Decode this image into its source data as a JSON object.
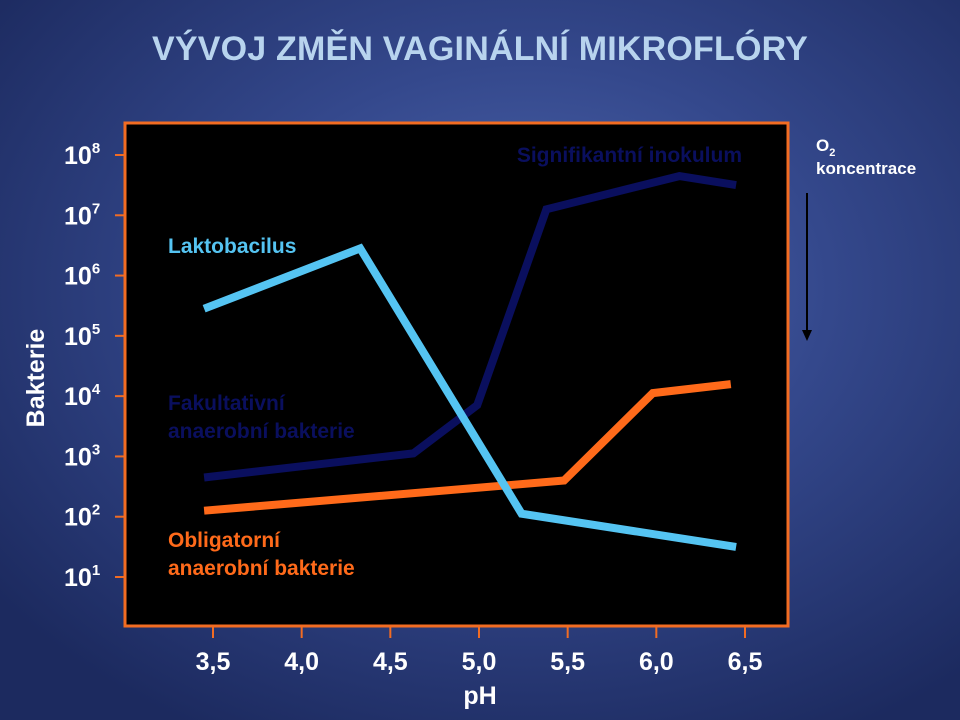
{
  "title": "VÝVOJ ZMĚN VAGINÁLNÍ MIKROFLÓRY",
  "colors": {
    "background": "#34488c",
    "plot_background": "#000000",
    "frame": "#f26c22",
    "lactobacillus": "#55c4f2",
    "facultative": "#0a0f5e",
    "obligate": "#ff6a1a"
  },
  "chart_data": {
    "type": "line",
    "xlabel": "pH",
    "ylabel": "Bakterie",
    "xlim": [
      3.45,
      6.62
    ],
    "x_ticks": [
      "3,5",
      "4,0",
      "4,5",
      "5,0",
      "5,5",
      "6,0",
      "6,5"
    ],
    "x_tick_values": [
      3.5,
      4.0,
      4.5,
      5.0,
      5.5,
      6.0,
      6.5
    ],
    "y_scale": "log",
    "ylim": [
      0.3,
      8.6
    ],
    "y_ticks": [
      {
        "value": 1,
        "base": "10",
        "exp": "1"
      },
      {
        "value": 2,
        "base": "10",
        "exp": "2"
      },
      {
        "value": 3,
        "base": "10",
        "exp": "3"
      },
      {
        "value": 4,
        "base": "10",
        "exp": "4"
      },
      {
        "value": 5,
        "base": "10",
        "exp": "5"
      },
      {
        "value": 6,
        "base": "10",
        "exp": "6"
      },
      {
        "value": 7,
        "base": "10",
        "exp": "7"
      },
      {
        "value": 8,
        "base": "10",
        "exp": "8"
      }
    ],
    "series": [
      {
        "name": "Laktobacilus",
        "color": "#55c4f2",
        "x": [
          3.45,
          4.33,
          5.24,
          6.45
        ],
        "y": [
          5.45,
          6.45,
          2.05,
          1.5
        ]
      },
      {
        "name": "Fakultativní anaerobní bakterie",
        "color": "#0a0f5e",
        "x": [
          3.45,
          4.63,
          4.99,
          5.38,
          6.13,
          6.45
        ],
        "y": [
          2.65,
          3.05,
          3.85,
          7.1,
          7.65,
          7.5
        ]
      },
      {
        "name": "Obligatorní anaerobní bakterie",
        "color": "#ff6a1a",
        "x": [
          3.45,
          5.48,
          5.98,
          6.42
        ],
        "y": [
          2.1,
          2.6,
          4.05,
          4.2
        ]
      }
    ],
    "annotations": [
      {
        "text": "Signifikantní inokulum",
        "color": "#0a0f5e"
      }
    ]
  },
  "series_labels": {
    "lactobacillus": {
      "lines": [
        "Laktobacilus"
      ]
    },
    "facultative": {
      "lines": [
        "Fakultativní",
        "anaerobní bakterie"
      ]
    },
    "obligate": {
      "lines": [
        "Obligatorní",
        "anaerobní bakterie"
      ]
    }
  },
  "o2": {
    "o_letter": "O",
    "subscript": "2",
    "word": "koncentrace",
    "direction": "down"
  }
}
